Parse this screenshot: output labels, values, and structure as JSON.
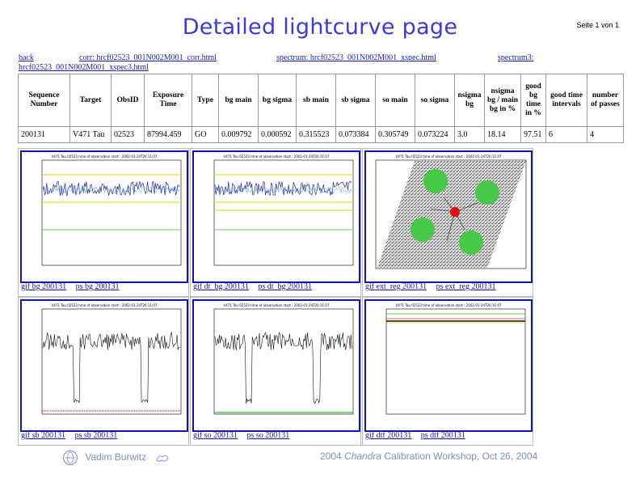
{
  "title": "Detailed lightcurve page",
  "page_number": "Seite 1 von 1",
  "links": {
    "back": "back",
    "corr": "corr: hrcf02523_001N002M001_corr.html",
    "spectrum": "spectrum: hrcf02523_001N002M001_xspec.html",
    "spectrum3_a": "spectrum3:",
    "spectrum3_b": "hrcf02523_001N002M001_xspec3.html"
  },
  "table": {
    "headers": [
      "Sequence Number",
      "Target",
      "ObsID",
      "Exposure Time",
      "Type",
      "bg main",
      "bg sigma",
      "sb main",
      "sb sigma",
      "so main",
      "so sigma",
      "nsigma bg",
      "nsigma bg / main bg in %",
      "good bg time in %",
      "good time intervals",
      "number of passes"
    ],
    "row": [
      "200131",
      "V471  Tau",
      "02523",
      "87994.459",
      "GO",
      "0.009792",
      "0.000592",
      "0.315523",
      "0.073384",
      "0.305749",
      "0.073224",
      "3.0",
      "18.14",
      "97.51",
      "6",
      "4"
    ]
  },
  "plots": [
    {
      "links": [
        "gif bg 200131",
        "ps bg 200131"
      ]
    },
    {
      "links": [
        "gif dt_bg 200131",
        "ps dt_bg 200131"
      ]
    },
    {
      "links": [
        "gif ext_reg 200131",
        "ps ext_reg 200131"
      ]
    },
    {
      "links": [
        "gif sb 200131",
        "ps sb 200131"
      ]
    },
    {
      "links": [
        "gif so 200131",
        "ps so 200131"
      ]
    },
    {
      "links": [
        "gif dtf 200131",
        "ps dtf 200131"
      ]
    }
  ],
  "plot_header": "V471 Tau  02523  time of observation start : 2002-01-24T20:11:07",
  "footer": {
    "author": "Vadim Burwitz",
    "event_pre": "2004 ",
    "event_italic": "Chandra",
    "event_post": " Calibration Workshop, Oct 26, 2004"
  },
  "colors": {
    "title": "#3a3adc",
    "link": "#1a1aa8",
    "plot_border": "#1414b4",
    "footer": "#7a8ec8"
  },
  "icons": [
    "globe-logo-icon",
    "mascot-logo-icon"
  ]
}
